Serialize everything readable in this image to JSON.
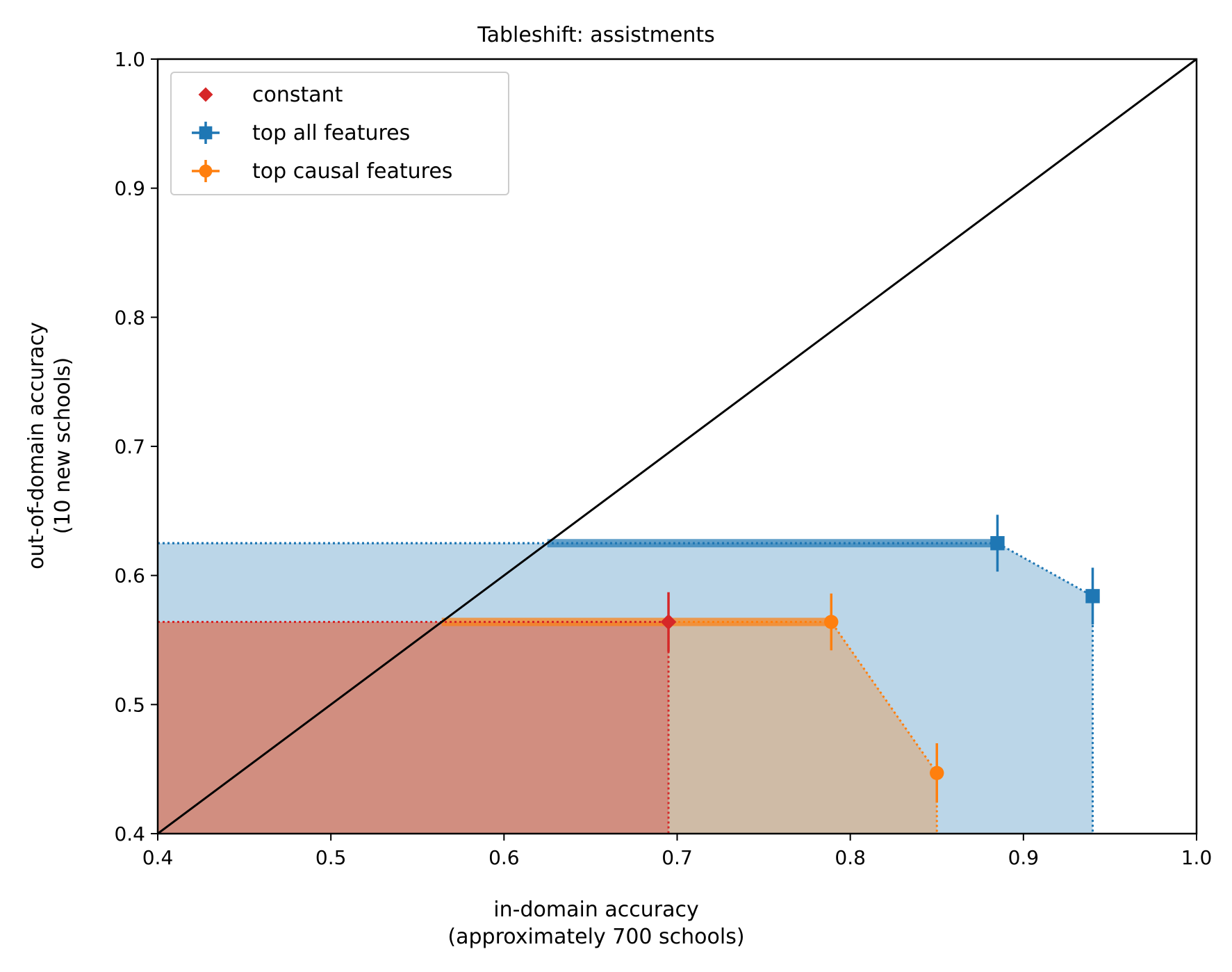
{
  "chart_data": {
    "type": "scatter",
    "title": "Tableshift: assistments",
    "xlabel_lines": [
      "in-domain accuracy",
      "(approximately 700 schools)"
    ],
    "ylabel_lines": [
      "out-of-domain accuracy",
      "(10 new schools)"
    ],
    "xlim": [
      0.4,
      1.0
    ],
    "ylim": [
      0.4,
      1.0
    ],
    "xticks": [
      0.4,
      0.5,
      0.6,
      0.7,
      0.8,
      0.9,
      1.0
    ],
    "yticks": [
      0.4,
      0.5,
      0.6,
      0.7,
      0.8,
      0.9,
      1.0
    ],
    "xtick_labels": [
      "0.4",
      "0.5",
      "0.6",
      "0.7",
      "0.8",
      "0.9",
      "1.0"
    ],
    "ytick_labels": [
      "0.4",
      "0.5",
      "0.6",
      "0.7",
      "0.8",
      "0.9",
      "1.0"
    ],
    "grid": false,
    "legend_position": "top-left",
    "diagonal": {
      "x": [
        0.4,
        1.0
      ],
      "y": [
        0.4,
        1.0
      ],
      "color": "#000000"
    },
    "series": [
      {
        "name": "constant",
        "marker": "diamond",
        "color": "#d62728",
        "points": [
          {
            "x": 0.695,
            "y": 0.564,
            "yerr": 0.023
          }
        ],
        "frontier": [
          [
            0.4,
            0.564
          ],
          [
            0.695,
            0.564
          ],
          [
            0.695,
            0.4
          ]
        ],
        "fill_color": "#d62728"
      },
      {
        "name": "top all features",
        "marker": "square",
        "color": "#1f77b4",
        "points": [
          {
            "x": 0.885,
            "y": 0.625,
            "yerr": 0.022
          },
          {
            "x": 0.94,
            "y": 0.584,
            "yerr": 0.022
          }
        ],
        "frontier": [
          [
            0.4,
            0.625
          ],
          [
            0.885,
            0.625
          ],
          [
            0.94,
            0.584
          ],
          [
            0.94,
            0.4
          ]
        ],
        "fill_color": "#1f77b4"
      },
      {
        "name": "top causal features",
        "marker": "circle",
        "color": "#ff7f0e",
        "points": [
          {
            "x": 0.789,
            "y": 0.564,
            "yerr": 0.022
          },
          {
            "x": 0.85,
            "y": 0.447,
            "yerr": 0.023
          }
        ],
        "frontier": [
          [
            0.4,
            0.564
          ],
          [
            0.789,
            0.564
          ],
          [
            0.85,
            0.447
          ],
          [
            0.85,
            0.4
          ]
        ],
        "fill_color": "#ff7f0e"
      }
    ]
  }
}
